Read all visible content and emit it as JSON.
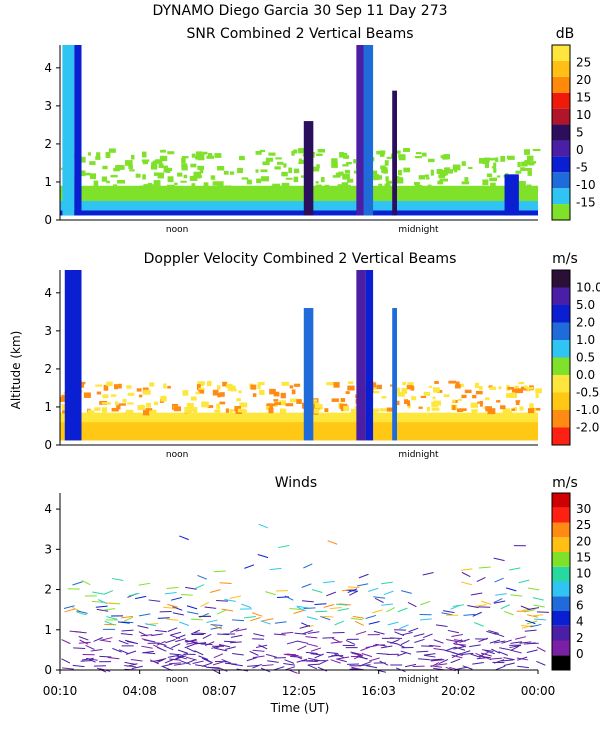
{
  "header": {
    "line1": "DYNAMO Diego Garcia  30 Sep 11 Day 273"
  },
  "colors": {
    "snr": [
      "#7fe12a",
      "#2fc4f2",
      "#1f6bd9",
      "#0a1fd1",
      "#4a1fa6",
      "#2b0f5c",
      "#b0152a",
      "#f01a0a",
      "#ff8a0a",
      "#ffbf14",
      "#ffe63c"
    ],
    "doppler": [
      "#ff2014",
      "#ff8a14",
      "#ffc814",
      "#ffe63c",
      "#7fe12a",
      "#2fc4f2",
      "#1f6bd9",
      "#0a1fd1",
      "#4a1fa6",
      "#2b0f36"
    ],
    "winds": [
      "#000000",
      "#7a1fa6",
      "#4a1fa6",
      "#0a1fd1",
      "#1f6bd9",
      "#2fc4f2",
      "#27d9a0",
      "#7fe12a",
      "#ffbf14",
      "#ff8a14",
      "#ff2014",
      "#d10000"
    ]
  },
  "chart_data": [
    {
      "type": "heatmap",
      "title": "SNR Combined 2 Vertical Beams",
      "unit": "dB",
      "ylim": [
        0,
        4.6
      ],
      "yticks": [
        "0",
        "1",
        "2",
        "3",
        "4"
      ],
      "colorbar_ticks": [
        "-15",
        "-10",
        "-5",
        "0",
        "5",
        "10",
        "15",
        "20",
        "25"
      ],
      "time_labels": [
        "noon",
        "midnight"
      ],
      "layers": [
        {
          "x": [
            0.0,
            1.0
          ],
          "ytop": 0.25,
          "level": 3
        },
        {
          "x": [
            0.0,
            1.0
          ],
          "ytop": 0.5,
          "level": 1
        },
        {
          "x": [
            0.0,
            1.0
          ],
          "ytop": 0.9,
          "level": 0
        }
      ],
      "columns": [
        {
          "x": [
            0.005,
            0.03
          ],
          "ytop": 4.6,
          "level": 1
        },
        {
          "x": [
            0.03,
            0.045
          ],
          "ytop": 4.6,
          "level": 3
        },
        {
          "x": [
            0.51,
            0.53
          ],
          "ytop": 2.6,
          "level": 5
        },
        {
          "x": [
            0.62,
            0.64
          ],
          "ytop": 4.6,
          "level": 4
        },
        {
          "x": [
            0.635,
            0.655
          ],
          "ytop": 4.6,
          "level": 2
        },
        {
          "x": [
            0.695,
            0.705
          ],
          "ytop": 3.4,
          "level": 5
        },
        {
          "x": [
            0.93,
            0.96
          ],
          "ytop": 1.2,
          "level": 3
        }
      ]
    },
    {
      "type": "heatmap",
      "title": "Doppler Velocity Combined 2 Vertical Beams",
      "unit": "m/s",
      "ylabel": "Altitude (km)",
      "ylim": [
        0,
        4.6
      ],
      "yticks": [
        "0",
        "1",
        "2",
        "3",
        "4"
      ],
      "colorbar_ticks": [
        "-2.0",
        "-1.0",
        "-0.5",
        "0.0",
        "0.5",
        "1.0",
        "2.0",
        "5.0",
        "10.0"
      ],
      "time_labels": [
        "noon",
        "midnight"
      ],
      "layers": [
        {
          "x": [
            0.0,
            1.0
          ],
          "ytop": 0.6,
          "level": 2
        },
        {
          "x": [
            0.0,
            1.0
          ],
          "ytop": 0.85,
          "level": 3
        }
      ],
      "columns": [
        {
          "x": [
            0.01,
            0.045
          ],
          "ytop": 4.6,
          "level": 7
        },
        {
          "x": [
            0.51,
            0.53
          ],
          "ytop": 3.6,
          "level": 6
        },
        {
          "x": [
            0.62,
            0.64
          ],
          "ytop": 4.6,
          "level": 8
        },
        {
          "x": [
            0.64,
            0.655
          ],
          "ytop": 4.6,
          "level": 7
        },
        {
          "x": [
            0.695,
            0.705
          ],
          "ytop": 3.6,
          "level": 6
        }
      ]
    },
    {
      "type": "scatter",
      "title": "Winds",
      "unit": "m/s",
      "xlabel": "Time (UT)",
      "ylim": [
        0,
        4.4
      ],
      "yticks": [
        "0",
        "1",
        "2",
        "3",
        "4"
      ],
      "xticks": [
        "00:10",
        "04:08",
        "08:07",
        "12:05",
        "16:03",
        "20:02",
        "00:00"
      ],
      "colorbar_ticks": [
        "0",
        "2",
        "4",
        "6",
        "8",
        "10",
        "15",
        "20",
        "25",
        "30"
      ],
      "time_labels": [
        "noon",
        "midnight"
      ]
    }
  ]
}
